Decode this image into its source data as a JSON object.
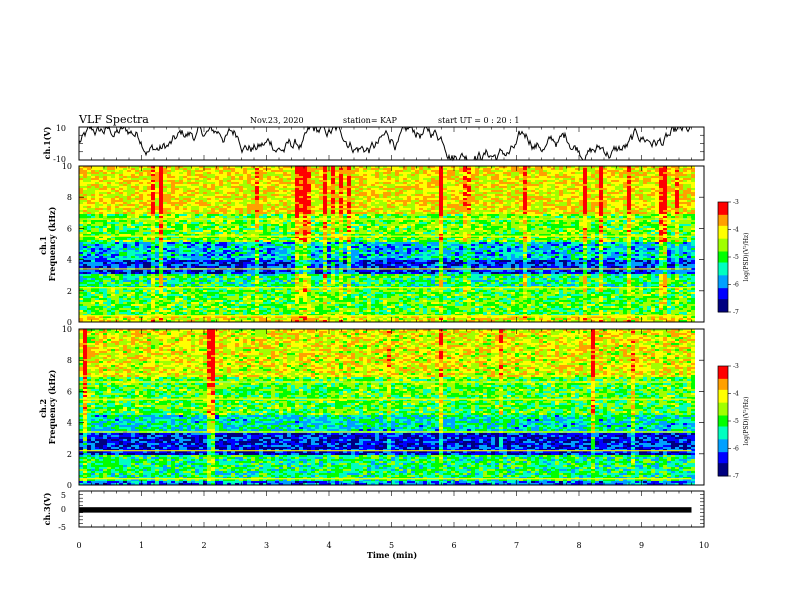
{
  "header": {
    "title": "VLF Spectra",
    "date": "Nov.23, 2020",
    "station": "station= KAP",
    "start": "start  UT =   0  : 20 : 1"
  },
  "colors": {
    "colormap": [
      "#000080",
      "#0000ff",
      "#00a0ff",
      "#00ffc0",
      "#00ff00",
      "#a0ff00",
      "#ffff00",
      "#ffa000",
      "#ff0000",
      "#ffffff"
    ],
    "waveform": "#000000"
  },
  "chart_data": [
    {
      "type": "line",
      "ylabel": "ch.1(V)",
      "ylim": [
        -10,
        10
      ],
      "yticks": [
        "10",
        "-10"
      ],
      "xlim": [
        0,
        10
      ],
      "series": [
        {
          "values_range": [
            -10,
            10
          ],
          "mean": 1
        }
      ]
    },
    {
      "type": "heatmap",
      "ylabel": "ch.1\nFrequency (kHz)",
      "ylim": [
        0,
        10
      ],
      "yticks": [
        "0",
        "2",
        "4",
        "6",
        "8",
        "10"
      ],
      "xlim": [
        0,
        9.8
      ],
      "colorbar": {
        "label": "log(PSD)(V²/Hz)",
        "range": [
          -7,
          -3
        ],
        "ticks": [
          "-3",
          "-4",
          "-5",
          "-6",
          "-7"
        ]
      },
      "bands": [
        {
          "f": [
            0.0,
            0.5
          ],
          "level": -4.2
        },
        {
          "f": [
            0.5,
            2.3
          ],
          "level": -4.9
        },
        {
          "f": [
            2.3,
            3.2
          ],
          "level": -5.2
        },
        {
          "f": [
            3.2,
            4.0
          ],
          "level": -6.3
        },
        {
          "f": [
            4.0,
            5.2
          ],
          "level": -5.7
        },
        {
          "f": [
            5.2,
            7.0
          ],
          "level": -4.8
        },
        {
          "f": [
            7.0,
            10.0
          ],
          "level": -4.1
        }
      ]
    },
    {
      "type": "heatmap",
      "ylabel": "ch.2\nFrequency (kHz)",
      "ylim": [
        0,
        10
      ],
      "yticks": [
        "0",
        "2",
        "4",
        "6",
        "8",
        "10"
      ],
      "xlim": [
        0,
        9.8
      ],
      "colorbar": {
        "label": "log(PSD)(V²/Hz)",
        "range": [
          -7,
          -3
        ],
        "ticks": [
          "-3",
          "-4",
          "-5",
          "-6",
          "-7"
        ]
      },
      "bands": [
        {
          "f": [
            0.0,
            0.3
          ],
          "level": -6.0
        },
        {
          "f": [
            0.3,
            2.0
          ],
          "level": -5.2
        },
        {
          "f": [
            2.0,
            3.4
          ],
          "level": -6.4
        },
        {
          "f": [
            3.4,
            4.5
          ],
          "level": -5.5
        },
        {
          "f": [
            4.5,
            7.0
          ],
          "level": -4.9
        },
        {
          "f": [
            7.0,
            10.0
          ],
          "level": -4.2
        }
      ]
    },
    {
      "type": "line",
      "ylabel": "ch.3(V)",
      "ylim": [
        -5,
        5
      ],
      "yticks": [
        "5",
        "0",
        "-5"
      ],
      "xlim": [
        0,
        10
      ],
      "series": [
        {
          "values_range": [
            -1,
            0.5
          ],
          "mean": -0.2
        }
      ]
    }
  ],
  "xaxis": {
    "label": "Time  (min)",
    "ticks": [
      "0",
      "1",
      "2",
      "3",
      "4",
      "5",
      "6",
      "7",
      "8",
      "9",
      "10"
    ],
    "xlim": [
      0,
      10
    ]
  }
}
